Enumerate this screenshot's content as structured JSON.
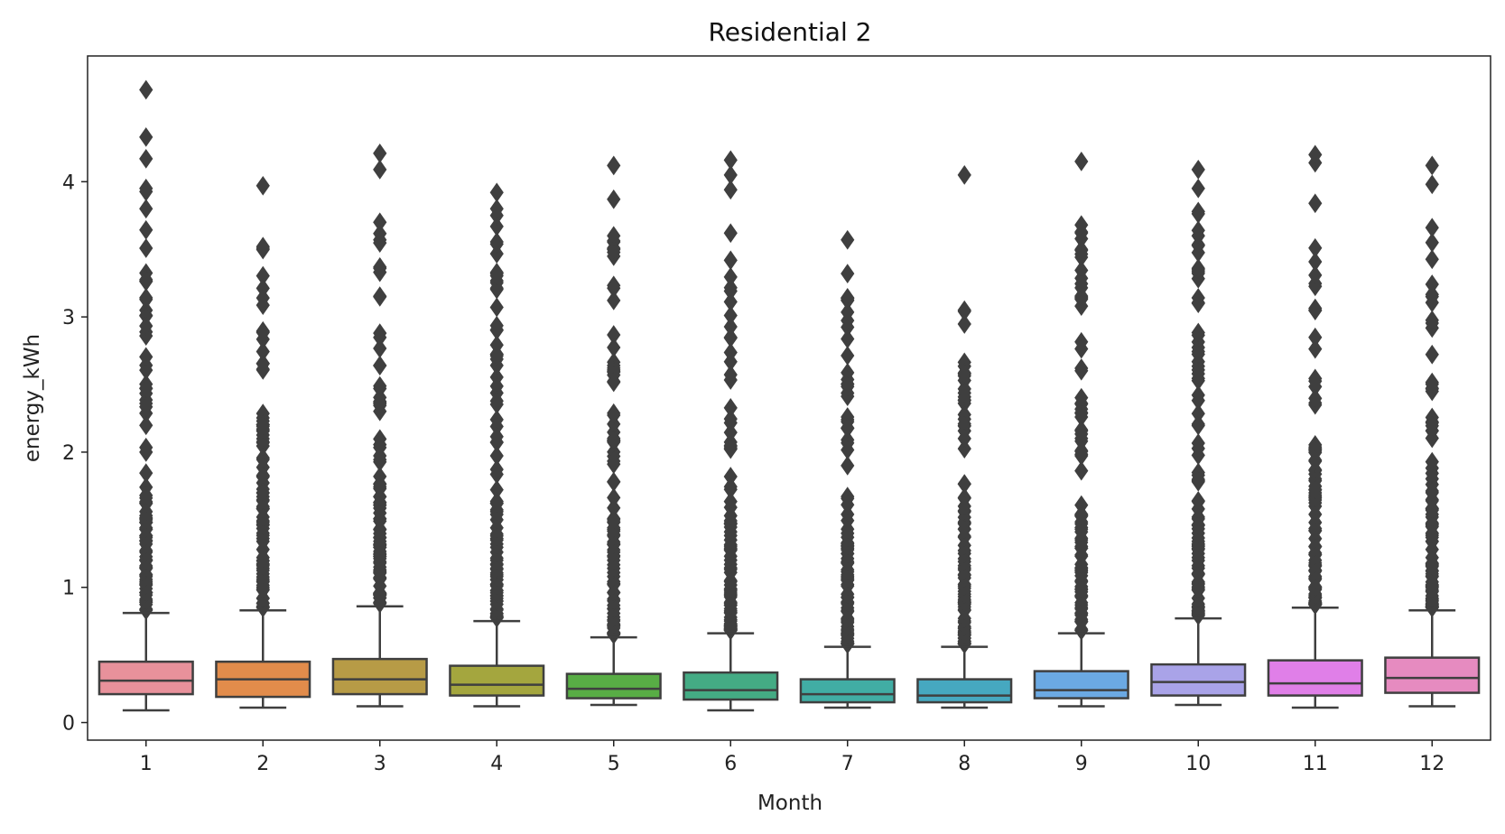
{
  "chart_data": {
    "type": "box",
    "title": "Residential 2",
    "xlabel": "Month",
    "ylabel": "energy_kWh",
    "categories": [
      "1",
      "2",
      "3",
      "4",
      "5",
      "6",
      "7",
      "8",
      "9",
      "10",
      "11",
      "12"
    ],
    "yticks": [
      0,
      1,
      2,
      3,
      4
    ],
    "ylim": [
      -0.13,
      4.93
    ],
    "grid": false,
    "legend": "none",
    "box_colors": [
      "#e8919b",
      "#e28c4b",
      "#b79b46",
      "#a4a63e",
      "#58ad45",
      "#44ab84",
      "#41ada4",
      "#46a8c0",
      "#6ba9e3",
      "#a9a3e8",
      "#e07fe8",
      "#e68bc0"
    ],
    "line_color": "#3f3f3f",
    "boxes": [
      {
        "month": "1",
        "whislo": 0.09,
        "q1": 0.21,
        "med": 0.31,
        "q3": 0.45,
        "whishi": 0.81,
        "fliers_dense_top": 3.95,
        "fliers": [
          4.17,
          4.33,
          4.68
        ]
      },
      {
        "month": "2",
        "whislo": 0.11,
        "q1": 0.19,
        "med": 0.32,
        "q3": 0.45,
        "whishi": 0.83,
        "fliers_dense_top": 3.52,
        "fliers": [
          3.97
        ]
      },
      {
        "month": "3",
        "whislo": 0.12,
        "q1": 0.21,
        "med": 0.32,
        "q3": 0.47,
        "whishi": 0.86,
        "fliers_dense_top": 3.7,
        "fliers": [
          4.09,
          4.21
        ]
      },
      {
        "month": "4",
        "whislo": 0.12,
        "q1": 0.2,
        "med": 0.28,
        "q3": 0.42,
        "whishi": 0.75,
        "fliers_dense_top": 3.8,
        "fliers": [
          3.92
        ]
      },
      {
        "month": "5",
        "whislo": 0.13,
        "q1": 0.18,
        "med": 0.25,
        "q3": 0.36,
        "whishi": 0.63,
        "fliers_dense_top": 3.6,
        "fliers": [
          3.87,
          4.12
        ]
      },
      {
        "month": "6",
        "whislo": 0.09,
        "q1": 0.17,
        "med": 0.24,
        "q3": 0.37,
        "whishi": 0.66,
        "fliers_dense_top": 3.62,
        "fliers": [
          3.94,
          4.05,
          4.16
        ]
      },
      {
        "month": "7",
        "whislo": 0.11,
        "q1": 0.15,
        "med": 0.21,
        "q3": 0.32,
        "whishi": 0.56,
        "fliers_dense_top": 3.32,
        "fliers": [
          3.57
        ]
      },
      {
        "month": "8",
        "whislo": 0.11,
        "q1": 0.15,
        "med": 0.2,
        "q3": 0.32,
        "whishi": 0.56,
        "fliers_dense_top": 3.05,
        "fliers": [
          4.05
        ]
      },
      {
        "month": "9",
        "whislo": 0.12,
        "q1": 0.18,
        "med": 0.24,
        "q3": 0.38,
        "whishi": 0.66,
        "fliers_dense_top": 3.68,
        "fliers": [
          4.15
        ]
      },
      {
        "month": "10",
        "whislo": 0.13,
        "q1": 0.2,
        "med": 0.3,
        "q3": 0.43,
        "whishi": 0.77,
        "fliers_dense_top": 3.95,
        "fliers": [
          4.09
        ]
      },
      {
        "month": "11",
        "whislo": 0.11,
        "q1": 0.2,
        "med": 0.29,
        "q3": 0.46,
        "whishi": 0.85,
        "fliers_dense_top": 3.84,
        "fliers": [
          4.14,
          4.2
        ]
      },
      {
        "month": "12",
        "whislo": 0.12,
        "q1": 0.22,
        "med": 0.33,
        "q3": 0.48,
        "whishi": 0.83,
        "fliers_dense_top": 3.66,
        "fliers": [
          3.98,
          4.12
        ]
      }
    ]
  }
}
